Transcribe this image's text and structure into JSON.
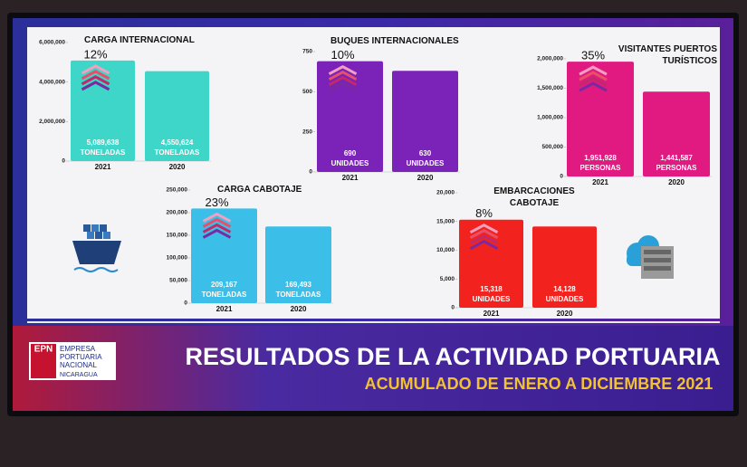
{
  "chart_data": [
    {
      "type": "bar",
      "title": "CARGA INTERNACIONAL",
      "categories": [
        "2021",
        "2020"
      ],
      "values": [
        5089638,
        4550624
      ],
      "value_labels": [
        "5,089,638",
        "4,550,624"
      ],
      "units": [
        "TONELADAS",
        "TONELADAS"
      ],
      "change_label": "12%",
      "color": "#3dd6c8",
      "ylim": [
        0,
        6000000
      ],
      "yticks": [
        0,
        {
          "value": 2000000,
          "label": "2,000,000"
        },
        {
          "value": 4000000,
          "label": "4,000,000"
        },
        {
          "value": 6000000,
          "label": "6,000,000"
        }
      ]
    },
    {
      "type": "bar",
      "title": "BUQUES INTERNACIONALES",
      "categories": [
        "2021",
        "2020"
      ],
      "values": [
        690,
        630
      ],
      "units": [
        "UNIDADES",
        "UNIDADES"
      ],
      "change_label": "10%",
      "color": "#7b22b8",
      "ylim": [
        0,
        750
      ],
      "yticks": [
        0,
        250,
        500,
        750
      ]
    },
    {
      "type": "bar",
      "title": "VISITANTES PUERTOS TURÍSTICOS",
      "categories": [
        "2021",
        "2020"
      ],
      "values": [
        1951928,
        1441587
      ],
      "value_labels": [
        "1,951,928",
        "1,441,587"
      ],
      "units": [
        "PERSONAS",
        "PERSONAS"
      ],
      "change_label": "35%",
      "color": "#e01a80",
      "ylim": [
        0,
        2000000
      ],
      "yticks": [
        0,
        {
          "value": 500000,
          "label": "500,000"
        },
        {
          "value": 1000000,
          "label": "1,000,000"
        },
        {
          "value": 1500000,
          "label": "1,500,000"
        },
        {
          "value": 2000000,
          "label": "2,000,000"
        }
      ]
    },
    {
      "type": "bar",
      "title": "CARGA CABOTAJE",
      "categories": [
        "2021",
        "2020"
      ],
      "values": [
        209167,
        169493
      ],
      "value_labels": [
        "209,167",
        "169,493"
      ],
      "units": [
        "TONELADAS",
        "TONELADAS"
      ],
      "change_label": "23%",
      "color": "#3bbfe8",
      "ylim": [
        0,
        250000
      ],
      "yticks": [
        0,
        {
          "value": 50000,
          "label": "50,000"
        },
        {
          "value": 100000,
          "label": "100,000"
        },
        {
          "value": 150000,
          "label": "150,000"
        },
        {
          "value": 200000,
          "label": "200,000"
        },
        {
          "value": 250000,
          "label": "250,000"
        }
      ]
    },
    {
      "type": "bar",
      "title": "EMBARCACIONES CABOTAJE",
      "categories": [
        "2021",
        "2020"
      ],
      "values": [
        15318,
        14128
      ],
      "value_labels": [
        "15,318",
        "14,128"
      ],
      "units": [
        "UNIDADES",
        "UNIDADES"
      ],
      "change_label": "8%",
      "color": "#f2231f",
      "ylim": [
        0,
        20000
      ],
      "yticks": [
        0,
        {
          "value": 5000,
          "label": "5,000"
        },
        {
          "value": 10000,
          "label": "10,000"
        },
        {
          "value": 15000,
          "label": "15,000"
        },
        {
          "value": 20000,
          "label": "20,000"
        }
      ]
    }
  ],
  "footer": {
    "title": "RESULTADOS DE LA ACTIVIDAD PORTUARIA",
    "subtitle": "ACUMULADO DE ENERO A DICIEMBRE 2021",
    "logo": {
      "acronym": "EPN",
      "lines": [
        "EMPRESA",
        "PORTUARIA",
        "NACIONAL",
        "NICARAGUA"
      ]
    }
  }
}
